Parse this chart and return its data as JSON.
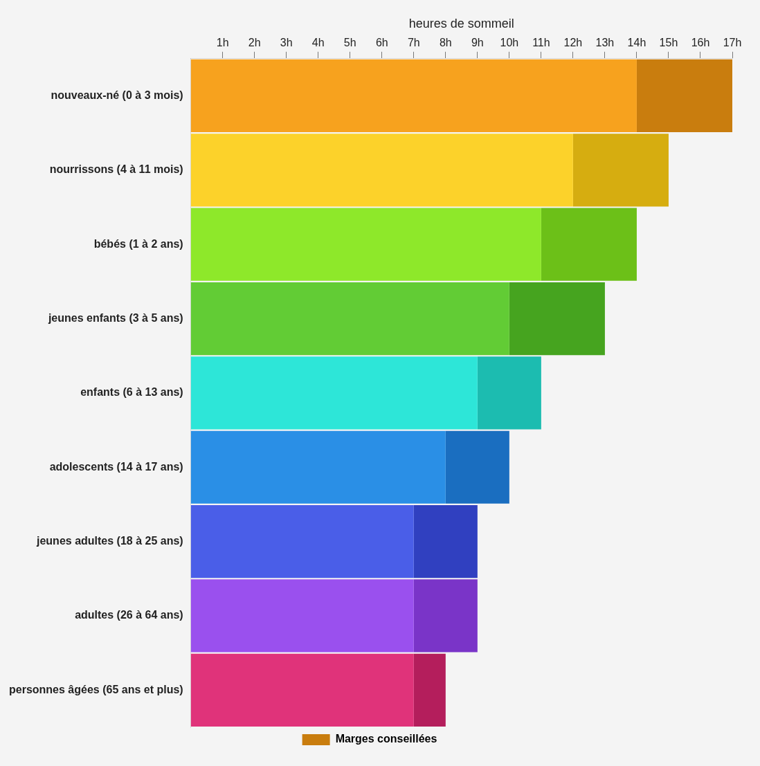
{
  "chart_data": {
    "type": "bar",
    "orientation": "horizontal",
    "stacked": true,
    "xlabel": "heures de sommeil",
    "categories": [
      "nouveaux-né (0 à 3 mois)",
      "nourrissons (4 à 11 mois)",
      "bébés (1 à 2 ans)",
      "jeunes enfants (3 à 5 ans)",
      "enfants (6 à 13 ans)",
      "adolescents (14 à 17 ans)",
      "jeunes adultes (18 à 25 ans)",
      "adultes (26 à 64 ans)",
      "personnes âgées (65 ans et plus)"
    ],
    "series": [
      {
        "values": [
          14,
          12,
          11,
          10,
          9,
          8,
          7,
          7,
          7
        ],
        "colors": [
          "#f7a21e",
          "#fcd22a",
          "#8ee82a",
          "#62cc35",
          "#2de6d8",
          "#2a8fe6",
          "#4a5ee8",
          "#9a50ee",
          "#e0337a"
        ]
      },
      {
        "name": "Marges conseillées",
        "values": [
          3,
          3,
          3,
          3,
          2,
          2,
          2,
          2,
          1
        ],
        "colors": [
          "#c97d0e",
          "#d6ad10",
          "#6cc018",
          "#46a41f",
          "#1cbcb0",
          "#1a6ec0",
          "#3040c0",
          "#7a34c8",
          "#b41e5c"
        ]
      }
    ],
    "xlim": [
      0,
      17
    ],
    "xticks": [
      {
        "value": 1,
        "label": "1h"
      },
      {
        "value": 2,
        "label": "2h"
      },
      {
        "value": 3,
        "label": "3h"
      },
      {
        "value": 4,
        "label": "4h"
      },
      {
        "value": 5,
        "label": "5h"
      },
      {
        "value": 6,
        "label": "6h"
      },
      {
        "value": 7,
        "label": "7h"
      },
      {
        "value": 8,
        "label": "8h"
      },
      {
        "value": 9,
        "label": "9h"
      },
      {
        "value": 10,
        "label": "10h"
      },
      {
        "value": 11,
        "label": "11h"
      },
      {
        "value": 12,
        "label": "12h"
      },
      {
        "value": 13,
        "label": "13h"
      },
      {
        "value": 14,
        "label": "14h"
      },
      {
        "value": 15,
        "label": "15h"
      },
      {
        "value": 16,
        "label": "16h"
      },
      {
        "value": 17,
        "label": "17h"
      }
    ],
    "legend": "bottom"
  }
}
